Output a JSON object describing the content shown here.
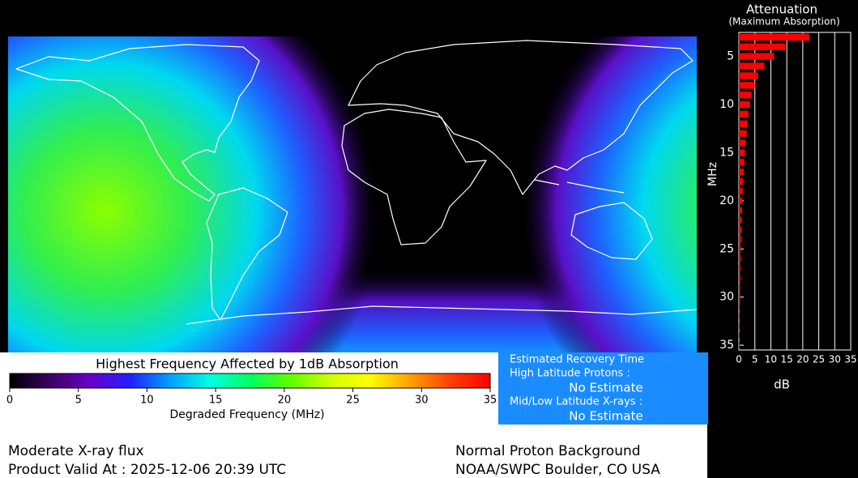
{
  "chart_data": {
    "type": "bar",
    "orientation": "horizontal",
    "title": "Attenuation",
    "subtitle": "(Maximum Absorption)",
    "y_label": "MHz",
    "x_label": "dB",
    "y": [
      3,
      4,
      5,
      6,
      7,
      8,
      9,
      10,
      11,
      12,
      13,
      14,
      15,
      16,
      17,
      18,
      19,
      20,
      21,
      22,
      23,
      24,
      25,
      26,
      27,
      28,
      29,
      30,
      31,
      32,
      33,
      34,
      35
    ],
    "values": [
      22,
      14.5,
      11,
      8,
      6,
      5,
      4,
      3.5,
      3,
      2.7,
      2.4,
      2.1,
      1.9,
      1.7,
      1.5,
      1.3,
      1.2,
      1.1,
      1,
      0.9,
      0.8,
      0.7,
      0.6,
      0.6,
      0.5,
      0.5,
      0.4,
      0.4,
      0.3,
      0.3,
      0.3,
      0.2,
      0.2
    ],
    "color": "#ff0000",
    "xlim": [
      0,
      35
    ],
    "xticks": [
      0,
      5,
      10,
      15,
      20,
      25,
      30,
      35
    ],
    "ylim": [
      2.5,
      35.5
    ],
    "yticks": [
      5,
      10,
      15,
      20,
      25,
      30,
      35
    ],
    "grid": true
  },
  "colorbar": {
    "title": "Highest Frequency Affected by 1dB Absorption",
    "label": "Degraded Frequency (MHz)",
    "lim": [
      0,
      35
    ],
    "ticks": [
      0,
      5,
      10,
      15,
      20,
      25,
      30,
      35
    ],
    "colors": [
      "#000000",
      "#3a0060",
      "#6a00c8",
      "#2020ff",
      "#00a0ff",
      "#00ffe0",
      "#00ff60",
      "#60ff00",
      "#d0ff00",
      "#ffff00",
      "#ffa000",
      "#ff4000",
      "#ff0000"
    ]
  },
  "recovery": {
    "title": "Estimated Recovery Time",
    "high_label": "High Latitude Protons :",
    "high_value": "No Estimate",
    "low_label": "Mid/Low Latitude X-rays :",
    "low_value": "No Estimate"
  },
  "footer": {
    "xray": "Moderate X-ray flux",
    "valid": "Product Valid At : 2025-12-06 20:39 UTC",
    "proton": "Normal Proton Background",
    "source": "NOAA/SWPC Boulder, CO USA"
  }
}
